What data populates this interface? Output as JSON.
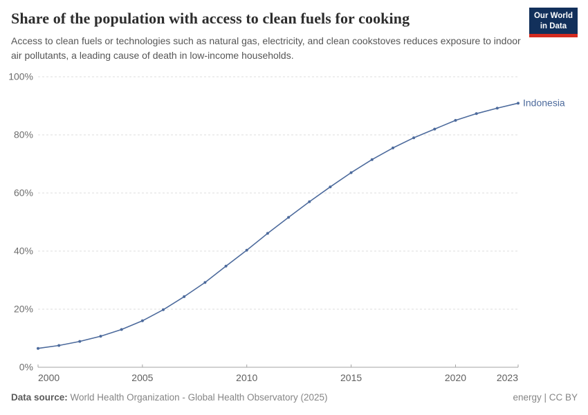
{
  "header": {
    "title": "Share of the population with access to clean fuels for cooking",
    "subtitle": "Access to clean fuels or technologies such as natural gas, electricity, and clean cookstoves reduces exposure to indoor air pollutants, a leading cause of death in low-income households.",
    "logo": {
      "line1": "Our World",
      "line2": "in Data",
      "bg_color": "#12305b",
      "stripe_color": "#d42b20"
    }
  },
  "chart_data": {
    "type": "line",
    "title": "Share of the population with access to clean fuels for cooking",
    "x": [
      2000,
      2001,
      2002,
      2003,
      2004,
      2005,
      2006,
      2007,
      2008,
      2009,
      2010,
      2011,
      2012,
      2013,
      2014,
      2015,
      2016,
      2017,
      2018,
      2019,
      2020,
      2021,
      2022,
      2023
    ],
    "series": [
      {
        "name": "Indonesia",
        "color": "#4c6a9c",
        "values": [
          6.5,
          7.5,
          8.9,
          10.7,
          13.0,
          16.0,
          19.8,
          24.3,
          29.2,
          34.8,
          40.3,
          46.1,
          51.6,
          57.0,
          62.1,
          67.0,
          71.5,
          75.5,
          79.0,
          82.0,
          85.0,
          87.3,
          89.2,
          90.9
        ]
      }
    ],
    "unit": "%",
    "ylim": [
      0,
      100
    ],
    "yticks": [
      0,
      20,
      40,
      60,
      80,
      100
    ],
    "xticks": [
      2000,
      2005,
      2010,
      2015,
      2020,
      2023
    ],
    "grid": true,
    "grid_style": "dashed",
    "legend_position": "end-of-line",
    "end_label": "Indonesia"
  },
  "footer": {
    "source_label": "Data source:",
    "source_value": "World Health Organization - Global Health Observatory (2025)",
    "license": "energy | CC BY"
  }
}
